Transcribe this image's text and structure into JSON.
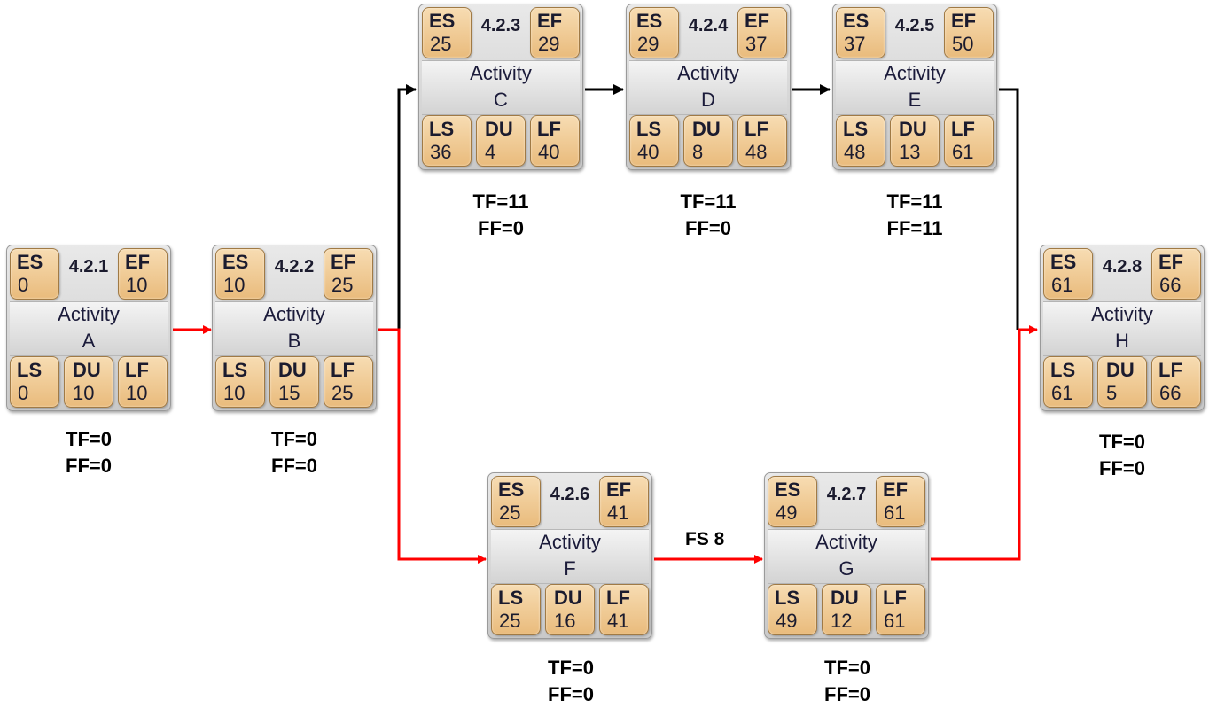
{
  "diagram": {
    "colors": {
      "critical_path": "#ff0000",
      "normal_path": "#000000",
      "cell_fill": "#f0c88e",
      "node_fill": "#d6d6d6"
    },
    "field_labels": {
      "es": "ES",
      "ef": "EF",
      "ls": "LS",
      "du": "DU",
      "lf": "LF"
    },
    "activities": [
      {
        "id": "4.2.1",
        "name_line1": "Activity",
        "name_line2": "A",
        "es": "0",
        "ef": "10",
        "ls": "0",
        "du": "10",
        "lf": "10",
        "tf": "TF=0",
        "ff": "FF=0"
      },
      {
        "id": "4.2.2",
        "name_line1": "Activity",
        "name_line2": "B",
        "es": "10",
        "ef": "25",
        "ls": "10",
        "du": "15",
        "lf": "25",
        "tf": "TF=0",
        "ff": "FF=0"
      },
      {
        "id": "4.2.3",
        "name_line1": "Activity",
        "name_line2": "C",
        "es": "25",
        "ef": "29",
        "ls": "36",
        "du": "4",
        "lf": "40",
        "tf": "TF=11",
        "ff": "FF=0"
      },
      {
        "id": "4.2.4",
        "name_line1": "Activity",
        "name_line2": "D",
        "es": "29",
        "ef": "37",
        "ls": "40",
        "du": "8",
        "lf": "48",
        "tf": "TF=11",
        "ff": "FF=0"
      },
      {
        "id": "4.2.5",
        "name_line1": "Activity",
        "name_line2": "E",
        "es": "37",
        "ef": "50",
        "ls": "48",
        "du": "13",
        "lf": "61",
        "tf": "TF=11",
        "ff": "FF=11"
      },
      {
        "id": "4.2.6",
        "name_line1": "Activity",
        "name_line2": "F",
        "es": "25",
        "ef": "41",
        "ls": "25",
        "du": "16",
        "lf": "41",
        "tf": "TF=0",
        "ff": "FF=0"
      },
      {
        "id": "4.2.7",
        "name_line1": "Activity",
        "name_line2": "G",
        "es": "49",
        "ef": "61",
        "ls": "49",
        "du": "12",
        "lf": "61",
        "tf": "TF=0",
        "ff": "FF=0"
      },
      {
        "id": "4.2.8",
        "name_line1": "Activity",
        "name_line2": "H",
        "es": "61",
        "ef": "66",
        "ls": "61",
        "du": "5",
        "lf": "66",
        "tf": "TF=0",
        "ff": "FF=0"
      }
    ],
    "dependencies": [
      {
        "from": "A",
        "to": "B",
        "critical": true,
        "label": ""
      },
      {
        "from": "B",
        "to": "C",
        "critical": false,
        "label": ""
      },
      {
        "from": "C",
        "to": "D",
        "critical": false,
        "label": ""
      },
      {
        "from": "D",
        "to": "E",
        "critical": false,
        "label": ""
      },
      {
        "from": "E",
        "to": "H",
        "critical": false,
        "label": ""
      },
      {
        "from": "B",
        "to": "F",
        "critical": true,
        "label": ""
      },
      {
        "from": "F",
        "to": "G",
        "critical": true,
        "label": "FS 8"
      },
      {
        "from": "G",
        "to": "H",
        "critical": true,
        "label": ""
      }
    ]
  }
}
